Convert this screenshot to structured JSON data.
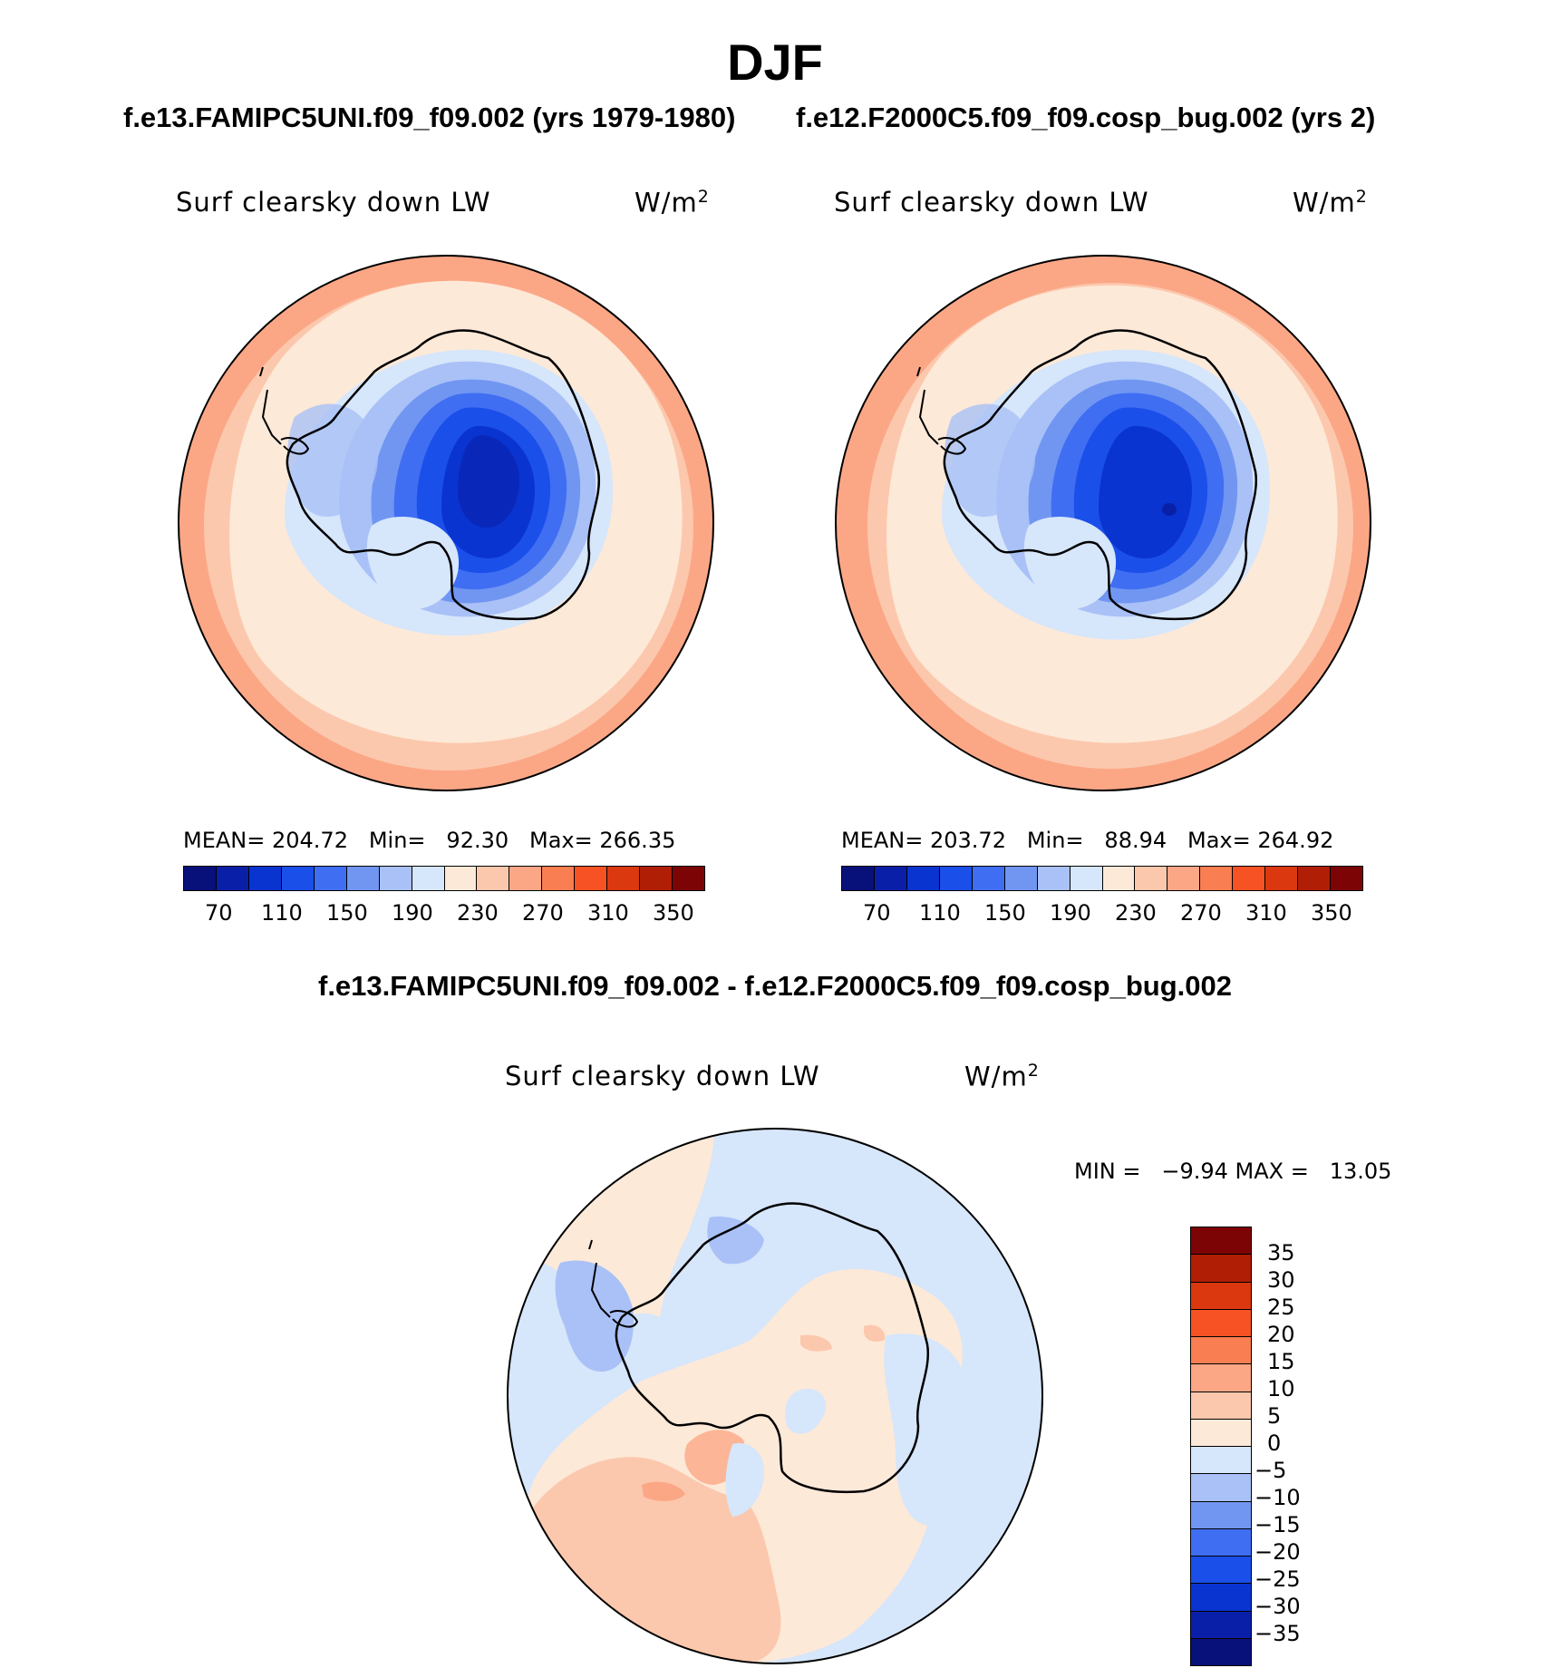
{
  "figure": {
    "title": "DJF",
    "case1_title": "f.e13.FAMIPC5UNI.f09_f09.002 (yrs 1979-1980)",
    "case2_title": "f.e12.F2000C5.f09_f09.cosp_bug.002 (yrs 2)",
    "diff_title": "f.e13.FAMIPC5UNI.f09_f09.002 - f.e12.F2000C5.f09_f09.cosp_bug.002"
  },
  "panels": [
    {
      "variable": "Surf clearsky down LW",
      "units_base": "W/m",
      "units_exp": "2",
      "stats": "MEAN= 204.72   Min=   92.30   Max= 266.35",
      "mean": 204.72,
      "min": 92.3,
      "max": 266.35
    },
    {
      "variable": "Surf clearsky down LW",
      "units_base": "W/m",
      "units_exp": "2",
      "stats": "MEAN= 203.72   Min=   88.94   Max= 264.92",
      "mean": 203.72,
      "min": 88.94,
      "max": 264.92
    },
    {
      "variable": "Surf clearsky down LW",
      "units_base": "W/m",
      "units_exp": "2",
      "stats": "MIN =   −9.94 MAX =   13.05",
      "min": -9.94,
      "max": 13.05
    }
  ],
  "colorbar_abs": {
    "tick_labels": [
      "70",
      "110",
      "150",
      "190",
      "230",
      "270",
      "310",
      "350"
    ],
    "colors": [
      "#08107a",
      "#0a1fa8",
      "#0a34d0",
      "#1b4fea",
      "#3f6ef2",
      "#7196f2",
      "#a9c1f6",
      "#d6e6fb",
      "#fde9d8",
      "#fcc8ad",
      "#fba786",
      "#f97e52",
      "#f65224",
      "#db380f",
      "#b01e05",
      "#7d0404"
    ]
  },
  "colorbar_diff": {
    "tick_labels": [
      "35",
      "30",
      "25",
      "20",
      "15",
      "10",
      "5",
      "0",
      "−5",
      "−10",
      "−15",
      "−20",
      "−25",
      "−30",
      "−35"
    ],
    "colors": [
      "#7d0404",
      "#b01e05",
      "#db380f",
      "#f65224",
      "#f97e52",
      "#fba786",
      "#fcc8ad",
      "#fde9d8",
      "#d6e6fb",
      "#a9c1f6",
      "#7196f2",
      "#3f6ef2",
      "#1b4fea",
      "#0a34d0",
      "#0a1fa8",
      "#08107a"
    ]
  }
}
